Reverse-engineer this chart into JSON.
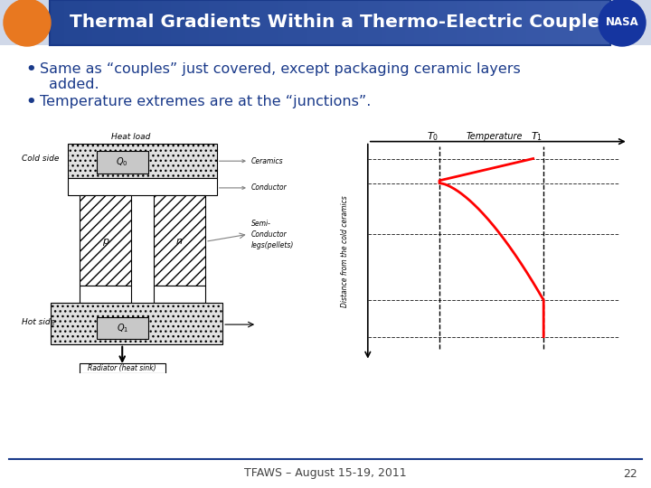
{
  "title": "Thermal Gradients Within a Thermo-Electric Couple",
  "bullet1_line1": "Same as “couples” just covered, except packaging ceramic layers",
  "bullet1_line2": "added.",
  "bullet2": "Temperature extremes are at the “junctions”.",
  "bullet_color": "#1a3a8a",
  "footer_text": "TFAWS – August 15-19, 2011",
  "footer_page": "22",
  "bg_color": "#ffffff",
  "header_blue": "#2a4a9a",
  "header_blue_light": "#3a5ab0"
}
